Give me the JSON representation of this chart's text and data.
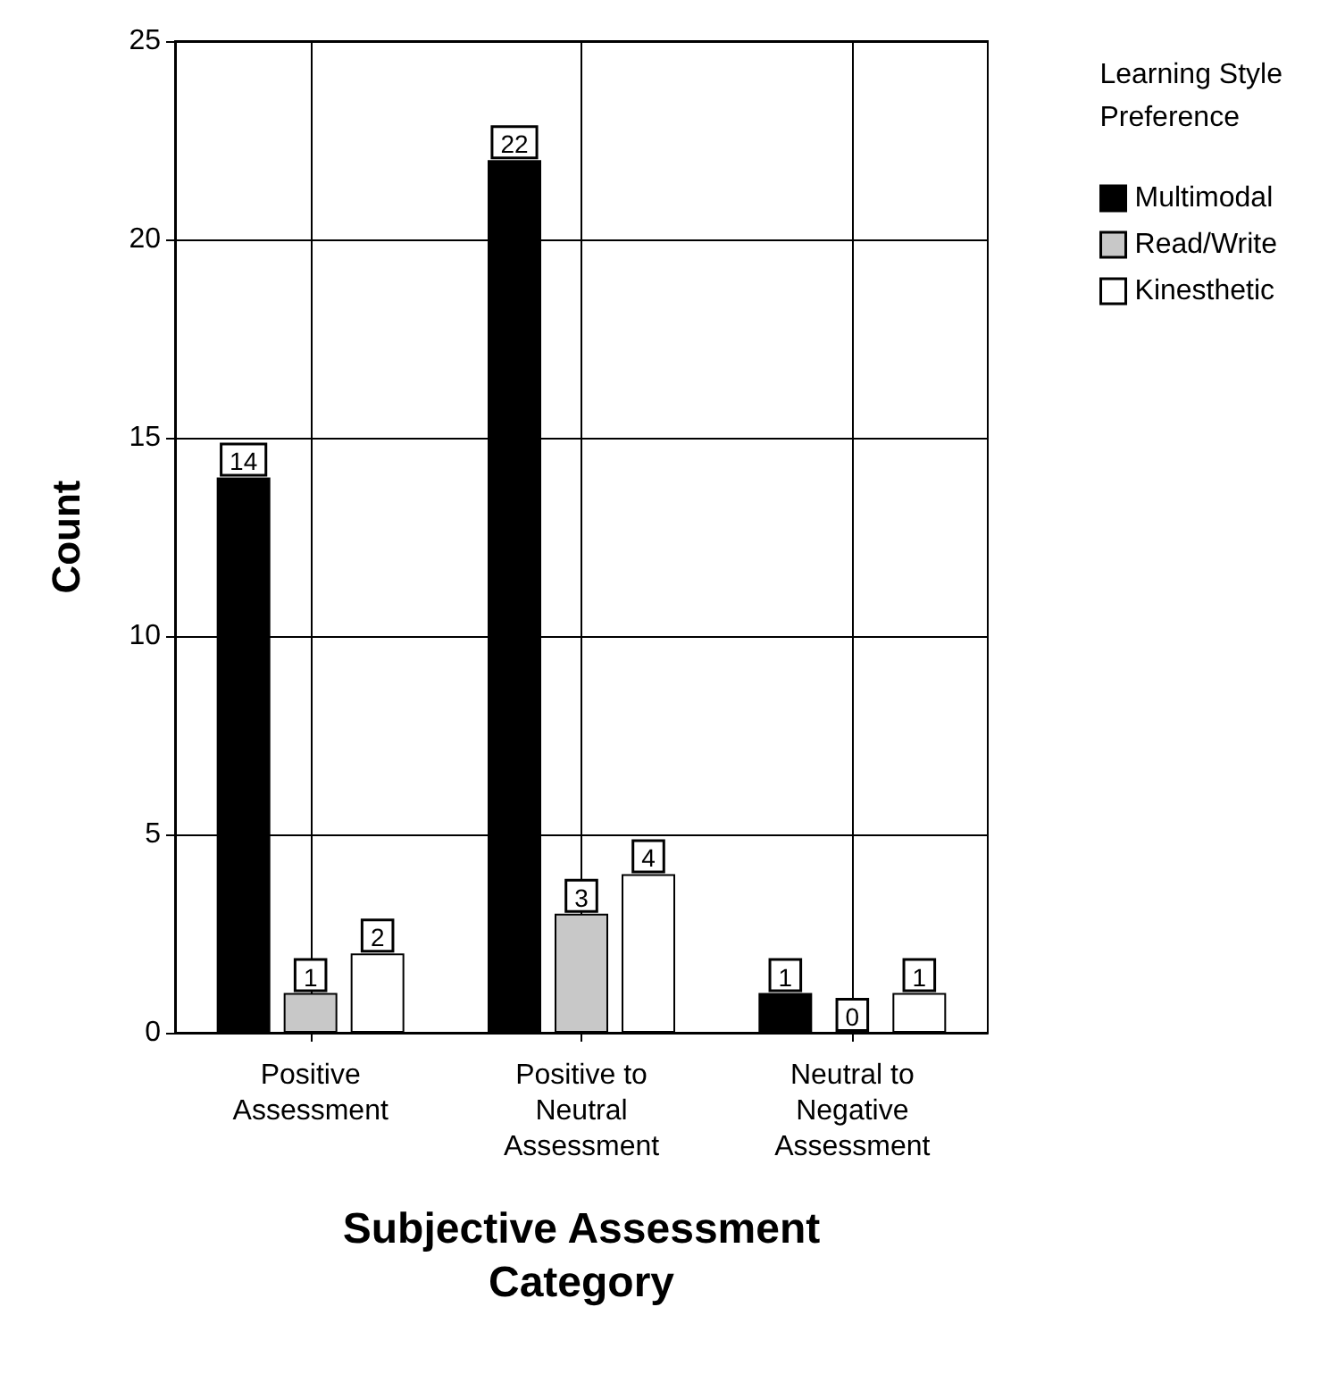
{
  "chart_data": {
    "type": "bar",
    "xlabel": "Subjective Assessment\nCategory",
    "ylabel": "Count",
    "legend_title": "Learning Style\nPreference",
    "categories": [
      "Positive\nAssessment",
      "Positive to\nNeutral\nAssessment",
      "Neutral to\nNegative\nAssessment"
    ],
    "series": [
      {
        "name": "Multimodal",
        "color": "#000000",
        "values": [
          14,
          22,
          1
        ]
      },
      {
        "name": "Read/Write",
        "color": "#c8c8c8",
        "values": [
          1,
          3,
          0
        ]
      },
      {
        "name": "Kinesthetic",
        "color": "#ffffff",
        "values": [
          2,
          4,
          1
        ]
      }
    ],
    "ylim": [
      0,
      25
    ],
    "yticks": [
      0,
      5,
      10,
      15,
      20,
      25
    ],
    "grid": true,
    "legend": "top right",
    "data_labels": true
  }
}
